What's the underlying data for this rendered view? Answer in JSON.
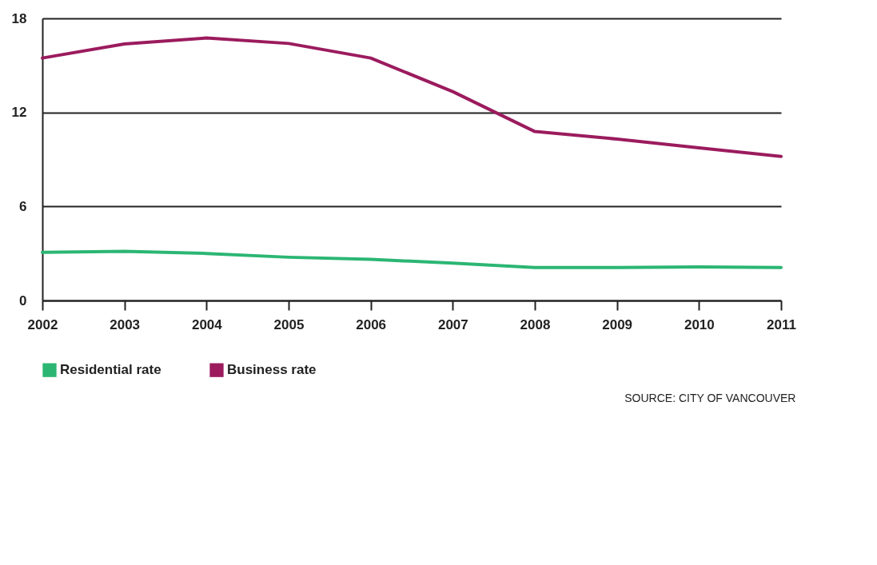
{
  "chart_data": {
    "type": "line",
    "categories": [
      "2002",
      "2003",
      "2004",
      "2005",
      "2006",
      "2007",
      "2008",
      "2009",
      "2010",
      "2011"
    ],
    "series": [
      {
        "name": "Residential rate",
        "color": "#2bb673",
        "values": [
          3.07,
          3.14,
          3.0,
          2.76,
          2.63,
          2.38,
          2.1,
          2.1,
          2.14,
          2.1
        ]
      },
      {
        "name": "Business rate",
        "color": "#9b1b5e",
        "values": [
          15.47,
          16.37,
          16.75,
          16.4,
          15.47,
          13.33,
          10.78,
          10.3,
          9.74,
          9.19
        ]
      }
    ],
    "ylim": [
      0,
      18
    ],
    "yticks": [
      0,
      6,
      12,
      18
    ],
    "grid": "y",
    "legend": "bottom",
    "marker": "none",
    "line_style": "solid",
    "annotations": [
      "SOURCE: CITY OF VANCOUVER"
    ]
  }
}
